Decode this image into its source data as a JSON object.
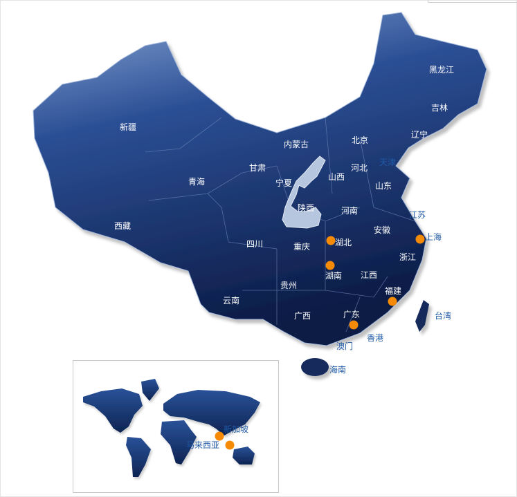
{
  "colors": {
    "land_top": "#7f9fcf",
    "land_bottom": "#0d1f4a",
    "marker": "#f58a07",
    "label_inside": "#ffffff",
    "label_outside": "#1f5aa6"
  },
  "china_map": {
    "provinces": [
      "新疆",
      "西藏",
      "青海",
      "甘肃",
      "内蒙古",
      "宁夏",
      "陕西",
      "山西",
      "北京",
      "河北",
      "天津",
      "辽宁",
      "吉林",
      "黑龙江",
      "山东",
      "河南",
      "江苏",
      "安徽",
      "上海",
      "湖北",
      "重庆",
      "四川",
      "浙江",
      "湖南",
      "江西",
      "贵州",
      "云南",
      "广西",
      "广东",
      "福建",
      "台湾",
      "香港",
      "澳门",
      "海南"
    ],
    "highlighted_province": "陕西",
    "markers": [
      "湖北",
      "湖南",
      "上海",
      "福建",
      "广东"
    ]
  },
  "world_map": {
    "labels": [
      "新加坡",
      "马来西亚"
    ],
    "markers": [
      "新加坡",
      "马来西亚"
    ]
  }
}
